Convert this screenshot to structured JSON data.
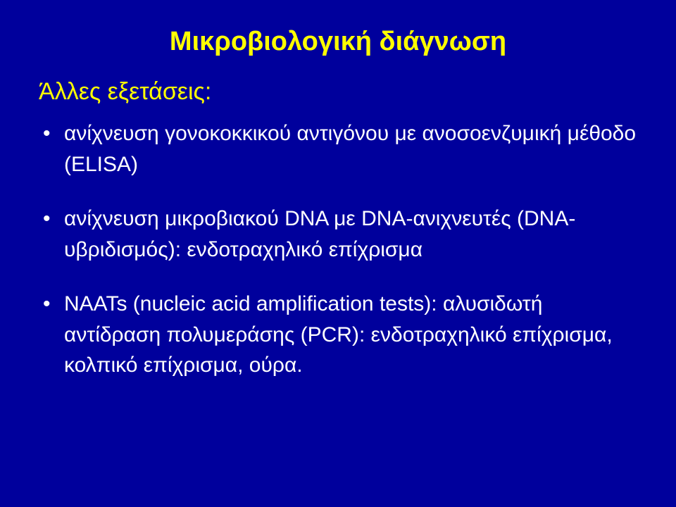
{
  "slide": {
    "background_color": "#00009c",
    "title_color": "#ffff00",
    "body_color": "#ffffff",
    "title_fontsize": 38,
    "subheading_fontsize": 34,
    "body_fontsize": 30,
    "title": "Μικροβιολογική διάγνωση",
    "subheading": "Άλλες εξετάσεις:",
    "bullets": [
      "ανίχνευση γονοκοκκικού αντιγόνου με ανοσοενζυμική μέθοδο (ELISA)",
      "ανίχνευση μικροβιακού DNA με DNA-ανιχνευτές (DNA-υβριδισμός): ενδοτραχηλικό επίχρισμα",
      "NAATs (nucleic acid amplification tests): αλυσιδωτή αντίδραση πολυμεράσης (PCR): ενδοτραχηλικό επίχρισμα, κολπικό επίχρισμα, ούρα."
    ]
  }
}
